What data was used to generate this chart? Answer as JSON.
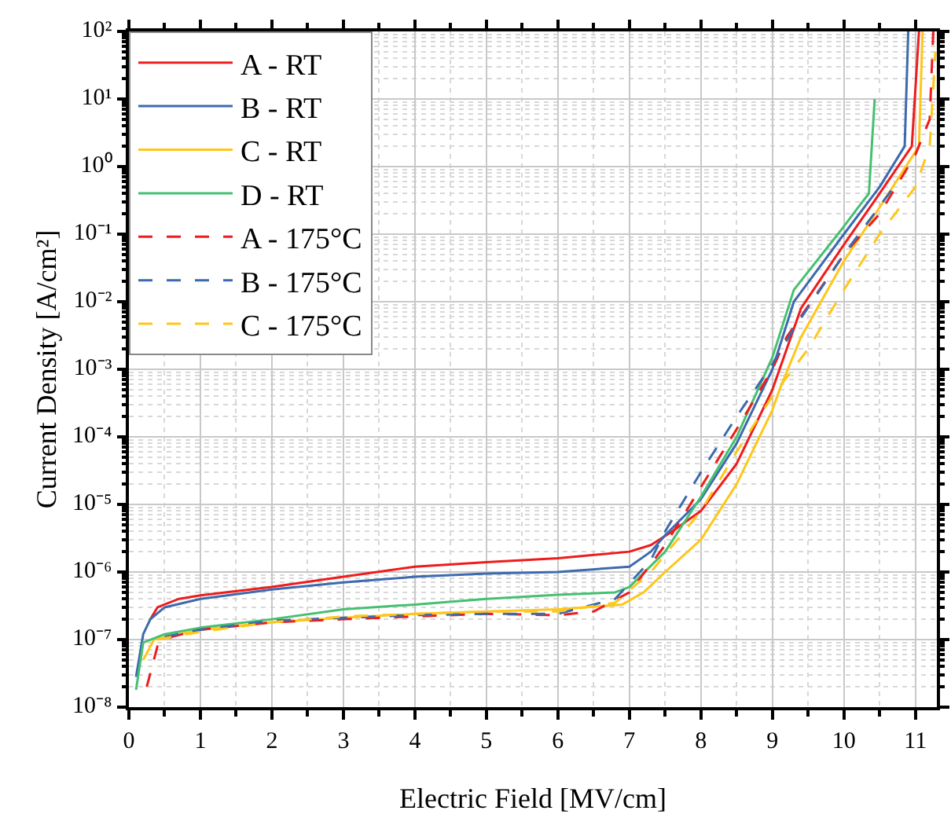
{
  "chart_data": {
    "type": "line",
    "xlabel": "Electric Field [MV/cm]",
    "ylabel": "Current Density [A/cm²]",
    "log": "y",
    "grid": true,
    "legend": "top left",
    "marker": "none",
    "line_style": "solid",
    "xlim": [
      0,
      11.3
    ],
    "xticks": [
      0,
      1,
      2,
      3,
      4,
      5,
      6,
      7,
      8,
      9,
      10,
      11
    ],
    "ylim": [
      1e-08,
      100
    ],
    "yticks": [
      {
        "value": 1e-08,
        "label": "10⁻⁸"
      },
      {
        "value": 1e-07,
        "label": "10⁻⁷"
      },
      {
        "value": 1e-06,
        "label": "10⁻⁶"
      },
      {
        "value": 1e-05,
        "label": "10⁻⁵"
      },
      {
        "value": 0.0001,
        "label": "10⁻⁴"
      },
      {
        "value": 0.001,
        "label": "10⁻³"
      },
      {
        "value": 0.01,
        "label": "10⁻²"
      },
      {
        "value": 0.1,
        "label": "10⁻¹"
      },
      {
        "value": 1,
        "label": "10⁰"
      },
      {
        "value": 10,
        "label": "10¹"
      },
      {
        "value": 100,
        "label": "10²"
      }
    ],
    "series": [
      {
        "name": "A - RT",
        "color": "#ee1c1c",
        "x": [
          0.3,
          0.4,
          0.7,
          1,
          2,
          3,
          4,
          5,
          6,
          7,
          7.3,
          7.6,
          8,
          8.5,
          9,
          9.4,
          10,
          10.5,
          10.95,
          11.05
        ],
        "values": [
          2e-07,
          3e-07,
          4e-07,
          4.5e-07,
          6e-07,
          8.5e-07,
          1.2e-06,
          1.4e-06,
          1.6e-06,
          2e-06,
          2.5e-06,
          4e-06,
          8e-06,
          4e-05,
          0.0005,
          0.008,
          0.07,
          0.4,
          2,
          100
        ]
      },
      {
        "name": "B - RT",
        "color": "#3d6aad",
        "x": [
          0.1,
          0.2,
          0.3,
          0.5,
          1,
          2,
          3,
          4,
          5,
          6,
          7,
          7.3,
          7.5,
          8,
          8.5,
          9,
          9.3,
          10,
          10.5,
          10.85,
          10.9
        ],
        "values": [
          2.8e-08,
          1.2e-07,
          2e-07,
          3e-07,
          4e-07,
          5.5e-07,
          7e-07,
          8.5e-07,
          9.5e-07,
          1e-06,
          1.2e-06,
          2e-06,
          3.5e-06,
          1.2e-05,
          8e-05,
          0.001,
          0.01,
          0.1,
          0.5,
          2,
          100
        ]
      },
      {
        "name": "C - RT",
        "color": "#ffc61a",
        "x": [
          0.2,
          0.35,
          1,
          2,
          3,
          4,
          5,
          6,
          6.9,
          7.2,
          7.5,
          8,
          8.5,
          9,
          9.1,
          9.4,
          10,
          10.5,
          11.05,
          11.1
        ],
        "values": [
          5e-08,
          1e-07,
          1.4e-07,
          1.8e-07,
          2.1e-07,
          2.4e-07,
          2.6e-07,
          2.8e-07,
          3.3e-07,
          5e-07,
          1e-06,
          3e-06,
          2e-05,
          0.00025,
          0.0005,
          0.003,
          0.04,
          0.25,
          2,
          100
        ]
      },
      {
        "name": "D - RT",
        "color": "#45c070",
        "x": [
          0.1,
          0.2,
          0.5,
          1,
          2,
          3,
          4,
          5,
          6,
          6.8,
          7,
          7.5,
          8,
          8.5,
          9,
          9.3,
          10,
          10.2,
          10.35,
          10.43
        ],
        "values": [
          1.8e-08,
          9e-08,
          1.2e-07,
          1.5e-07,
          2e-07,
          2.8e-07,
          3.3e-07,
          4e-07,
          4.6e-07,
          5e-07,
          6e-07,
          2e-06,
          1.3e-05,
          0.0001,
          0.0015,
          0.015,
          0.13,
          0.25,
          0.4,
          10
        ]
      },
      {
        "name": "A - 175°C",
        "color": "#ee1c1c",
        "line_style": "dashed",
        "x": [
          0.25,
          0.4,
          0.6,
          1,
          2,
          3,
          4,
          5,
          6,
          6.5,
          7,
          7.5,
          8,
          8.5,
          9,
          9.2,
          10,
          10.5,
          11,
          11.2,
          11.25
        ],
        "values": [
          2e-08,
          8e-08,
          1.1e-07,
          1.4e-07,
          1.8e-07,
          2e-07,
          2.2e-07,
          2.4e-07,
          2.3e-07,
          2.6e-07,
          5e-07,
          2.5e-06,
          1.8e-05,
          0.00013,
          0.001,
          0.003,
          0.05,
          0.2,
          1.5,
          5,
          100
        ]
      },
      {
        "name": "B - 175°C",
        "color": "#3d6aad",
        "line_style": "dashed",
        "x": [
          0.5,
          1,
          2,
          3,
          4,
          5,
          6,
          6.8,
          7.3,
          7.5,
          8,
          8.5,
          9,
          9.3,
          10,
          10.7
        ],
        "values": [
          1.1e-07,
          1.4e-07,
          1.9e-07,
          2.1e-07,
          2.3e-07,
          2.4e-07,
          2.4e-07,
          4e-07,
          1.5e-06,
          4e-06,
          3e-05,
          0.0002,
          0.0012,
          0.004,
          0.05,
          0.5
        ]
      },
      {
        "name": "C - 175°C",
        "color": "#ffc61a",
        "line_style": "dashed",
        "x": [
          0.4,
          1,
          2,
          3,
          4,
          5,
          6,
          6.8,
          7.3,
          8,
          8.5,
          9,
          9.5,
          10,
          10.5,
          11,
          11.2,
          11.28
        ],
        "values": [
          1e-07,
          1.3e-07,
          1.8e-07,
          2.2e-07,
          2.4e-07,
          2.6e-07,
          2.6e-07,
          3.5e-07,
          1e-06,
          8e-06,
          6e-05,
          0.0004,
          0.002,
          0.015,
          0.1,
          0.5,
          2,
          50
        ]
      }
    ]
  }
}
